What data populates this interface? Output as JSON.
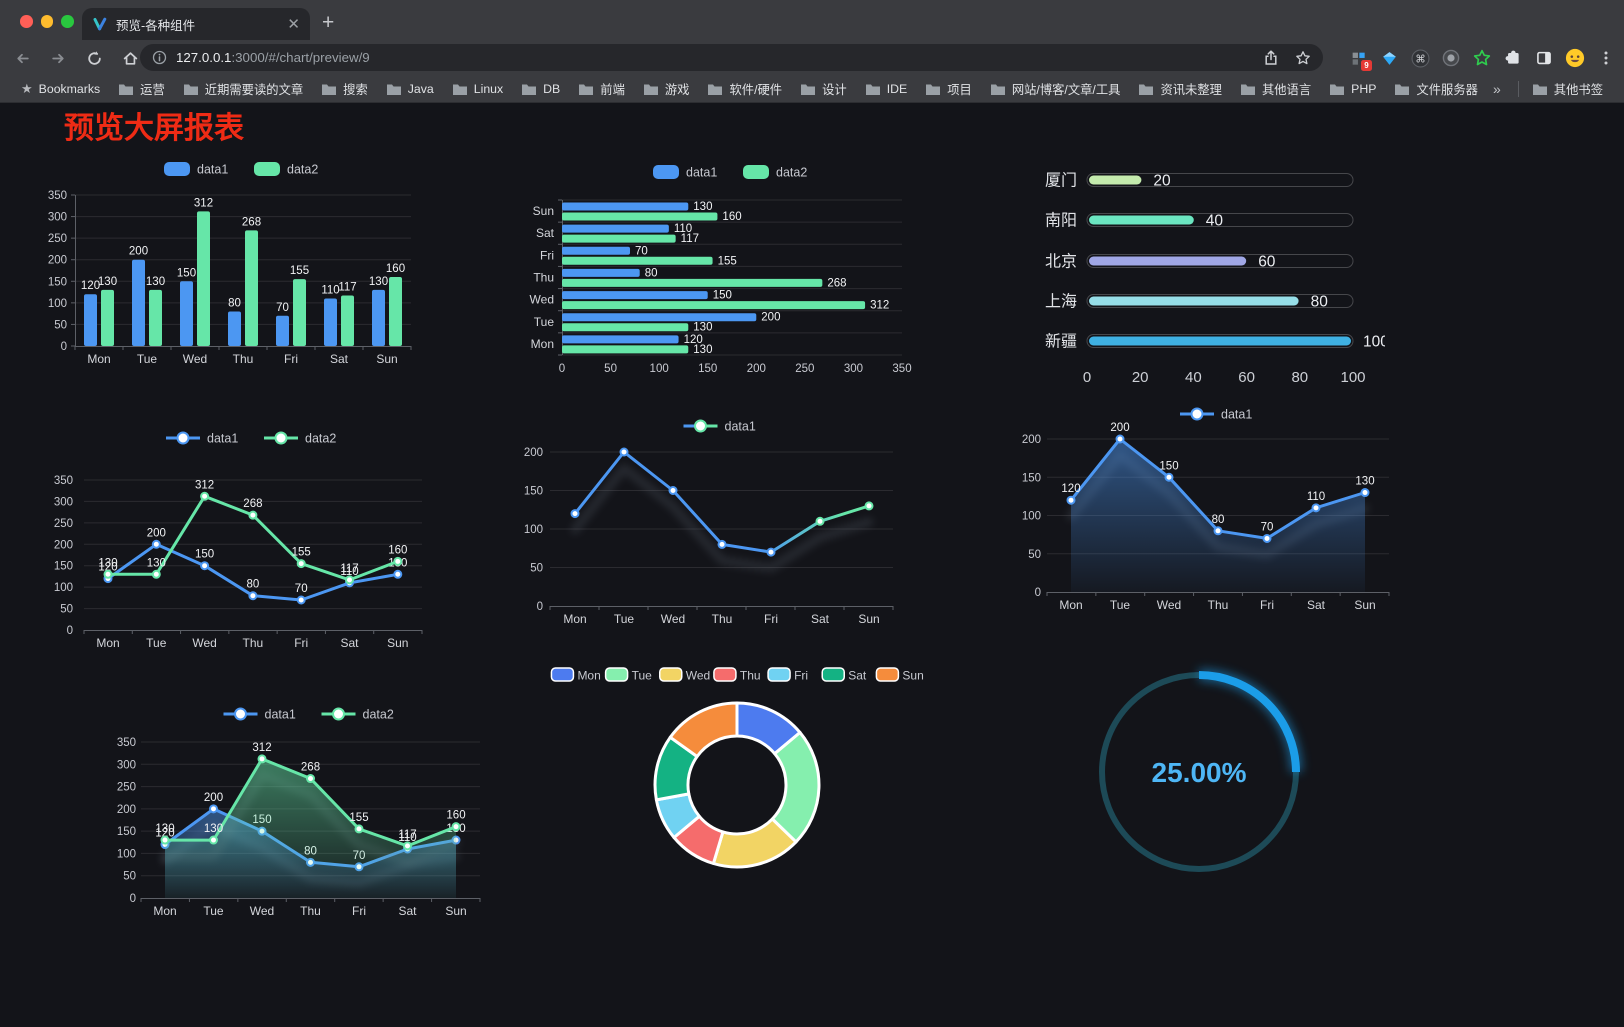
{
  "browser": {
    "tab_title": "预览-各种组件",
    "new_tab_label": "+",
    "url_host": "127.0.0.1",
    "url_rest": ":3000/#/chart/preview/9",
    "bookmarks_label": "Bookmarks",
    "bookmarks": [
      "运营",
      "近期需要读的文章",
      "搜索",
      "Java",
      "Linux",
      "DB",
      "前端",
      "游戏",
      "软件/硬件",
      "设计",
      "IDE",
      "项目",
      "网站/博客/文章/工具",
      "资讯未整理",
      "其他语言",
      "PHP",
      "文件服务器"
    ],
    "overflow_chevron": "»",
    "other_bookmarks": "其他书签",
    "extension_badge": "9"
  },
  "page": {
    "title": "预览大屏报表",
    "title_color": "#ef2b15"
  },
  "chart_data": [
    {
      "id": "bar-vertical",
      "type": "bar",
      "categories": [
        "Mon",
        "Tue",
        "Wed",
        "Thu",
        "Fri",
        "Sat",
        "Sun"
      ],
      "series": [
        {
          "name": "data1",
          "color": "#4c97f2",
          "values": [
            120,
            200,
            150,
            80,
            70,
            110,
            130
          ]
        },
        {
          "name": "data2",
          "color": "#66e6a8",
          "values": [
            130,
            130,
            312,
            268,
            155,
            117,
            160
          ]
        }
      ],
      "ylim": [
        0,
        350
      ],
      "ytick_step": 50,
      "legend_position": "top",
      "value_labels": true,
      "grid": true
    },
    {
      "id": "bar-horizontal",
      "type": "bar-horizontal",
      "categories": [
        "Sun",
        "Sat",
        "Fri",
        "Thu",
        "Wed",
        "Tue",
        "Mon"
      ],
      "series": [
        {
          "name": "data1",
          "color": "#4c97f2",
          "values": [
            130,
            110,
            70,
            80,
            150,
            200,
            120
          ]
        },
        {
          "name": "data2",
          "color": "#66e6a8",
          "values": [
            160,
            117,
            155,
            268,
            312,
            130,
            130
          ]
        }
      ],
      "xlim": [
        0,
        350
      ],
      "xtick_step": 50,
      "legend_position": "top",
      "value_labels": true
    },
    {
      "id": "city-progress",
      "type": "pill-bar",
      "rows": [
        {
          "label": "厦门",
          "value": 20,
          "color": "#c4ebad"
        },
        {
          "label": "南阳",
          "value": 40,
          "color": "#6be6c1"
        },
        {
          "label": "北京",
          "value": 60,
          "color": "#a0a7e6"
        },
        {
          "label": "上海",
          "value": 80,
          "color": "#96dee8"
        },
        {
          "label": "新疆",
          "value": 100,
          "color": "#3fb1e3"
        }
      ],
      "xlim": [
        0,
        100
      ],
      "xticks": [
        0,
        20,
        40,
        60,
        80,
        100
      ]
    },
    {
      "id": "line-dual",
      "type": "line",
      "categories": [
        "Mon",
        "Tue",
        "Wed",
        "Thu",
        "Fri",
        "Sat",
        "Sun"
      ],
      "series": [
        {
          "name": "data1",
          "color": "#4c97f2",
          "values": [
            120,
            200,
            150,
            80,
            70,
            110,
            130
          ]
        },
        {
          "name": "data2",
          "color": "#66e6a8",
          "values": [
            130,
            130,
            312,
            268,
            155,
            117,
            160
          ]
        }
      ],
      "ylim": [
        0,
        350
      ],
      "ytick_step": 50,
      "legend_position": "top",
      "value_labels": true
    },
    {
      "id": "line-gradient",
      "type": "line",
      "categories": [
        "Mon",
        "Tue",
        "Wed",
        "Thu",
        "Fri",
        "Sat",
        "Sun"
      ],
      "series": [
        {
          "name": "data1",
          "gradient": [
            "#4c97f2",
            "#66e6a8"
          ],
          "values": [
            120,
            200,
            150,
            80,
            70,
            110,
            130
          ]
        }
      ],
      "ylim": [
        0,
        200
      ],
      "ytick_step": 50,
      "legend_position": "top",
      "value_labels": false,
      "shadow": true
    },
    {
      "id": "line-area",
      "type": "line",
      "categories": [
        "Mon",
        "Tue",
        "Wed",
        "Thu",
        "Fri",
        "Sat",
        "Sun"
      ],
      "series": [
        {
          "name": "data1",
          "color": "#4c97f2",
          "values": [
            120,
            200,
            150,
            80,
            70,
            110,
            130
          ],
          "area": true
        }
      ],
      "ylim": [
        0,
        200
      ],
      "ytick_step": 50,
      "legend_position": "top",
      "value_labels": true,
      "shadow": true
    },
    {
      "id": "line-dual-area",
      "type": "line",
      "categories": [
        "Mon",
        "Tue",
        "Wed",
        "Thu",
        "Fri",
        "Sat",
        "Sun"
      ],
      "series": [
        {
          "name": "data1",
          "color": "#4c97f2",
          "values": [
            120,
            200,
            150,
            80,
            70,
            110,
            130
          ],
          "area": true
        },
        {
          "name": "data2",
          "color": "#66e6a8",
          "values": [
            130,
            130,
            312,
            268,
            155,
            117,
            160
          ],
          "area": true
        }
      ],
      "ylim": [
        0,
        350
      ],
      "ytick_step": 50,
      "legend_position": "top",
      "value_labels": true,
      "shadow": true
    },
    {
      "id": "donut",
      "type": "pie",
      "labels": [
        "Mon",
        "Tue",
        "Wed",
        "Thu",
        "Fri",
        "Sat",
        "Sun"
      ],
      "values": [
        120,
        200,
        150,
        80,
        70,
        110,
        130
      ],
      "colors": [
        "#4d7bef",
        "#85efae",
        "#f2d464",
        "#f56c6c",
        "#70d2f2",
        "#14b283",
        "#f58c3c"
      ],
      "border_color": "#ffffff",
      "inner_radius_ratio": 0.6,
      "legend_position": "top"
    },
    {
      "id": "gauge",
      "type": "gauge",
      "value_percent": 25,
      "display": "25.00%",
      "track_color": "#1d4a57",
      "progress_color": "#1b9de8",
      "text_color": "#4eb6f5"
    }
  ]
}
